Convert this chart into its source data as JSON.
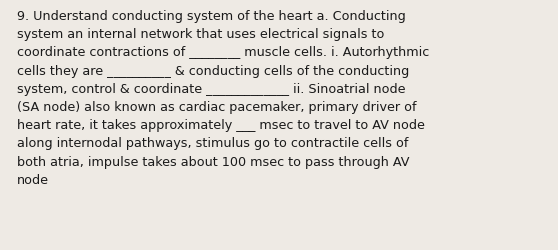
{
  "background_color": "#eeeae4",
  "text_color": "#1a1a1a",
  "font_size": 9.2,
  "text": "9. Understand conducting system of the heart a. Conducting\nsystem an internal network that uses electrical signals to\ncoordinate contractions of ________ muscle cells. i. Autorhythmic\ncells they are __________ & conducting cells of the conducting\nsystem, control & coordinate _____________ ii. Sinoatrial node\n(SA node) also known as cardiac pacemaker, primary driver of\nheart rate, it takes approximately ___ msec to travel to AV node\nalong internodal pathways, stimulus go to contractile cells of\nboth atria, impulse takes about 100 msec to pass through AV\nnode",
  "fig_width": 5.58,
  "fig_height": 2.51,
  "dpi": 100
}
